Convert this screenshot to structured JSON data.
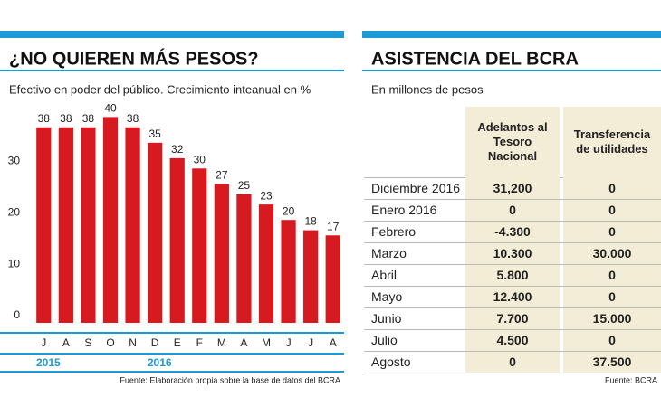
{
  "chart_data": {
    "type": "bar",
    "title": "¿NO QUIEREN MÁS PESOS?",
    "subtitle": "Efectivo en poder del público. Crecimiento inteanual  en %",
    "categories": [
      "J",
      "A",
      "S",
      "O",
      "N",
      "D",
      "E",
      "F",
      "M",
      "A",
      "M",
      "J",
      "J",
      "A"
    ],
    "values": [
      38,
      38,
      38,
      40,
      38,
      35,
      32,
      30,
      27,
      25,
      23,
      20,
      18,
      17
    ],
    "color": "#d71920",
    "ylim": [
      0,
      42
    ],
    "yticks": [
      0,
      10,
      20,
      30
    ],
    "grid": false,
    "years": [
      "2015",
      "2016"
    ],
    "source": "Fuente: Elaboración propia sobre la base de datos del BCRA"
  },
  "table": {
    "title": "ASISTENCIA DEL BCRA",
    "subtitle": "En millones de pesos",
    "columns": [
      "Adelantos al Tesoro Nacional",
      "Transferencia de utilidades"
    ],
    "rows": [
      [
        "Diciembre 2016",
        "31,200",
        "0"
      ],
      [
        "Enero 2016",
        "0",
        "0"
      ],
      [
        "Febrero",
        "-4.300",
        "0"
      ],
      [
        "Marzo",
        "10.300",
        "30.000"
      ],
      [
        "Abril",
        "5.800",
        "0"
      ],
      [
        "Mayo",
        "12.400",
        "0"
      ],
      [
        "Junio",
        "7.700",
        "15.000"
      ],
      [
        "Julio",
        "4.500",
        "0"
      ],
      [
        "Agosto",
        "0",
        "37.500"
      ]
    ],
    "source": "Fuente: BCRA"
  }
}
